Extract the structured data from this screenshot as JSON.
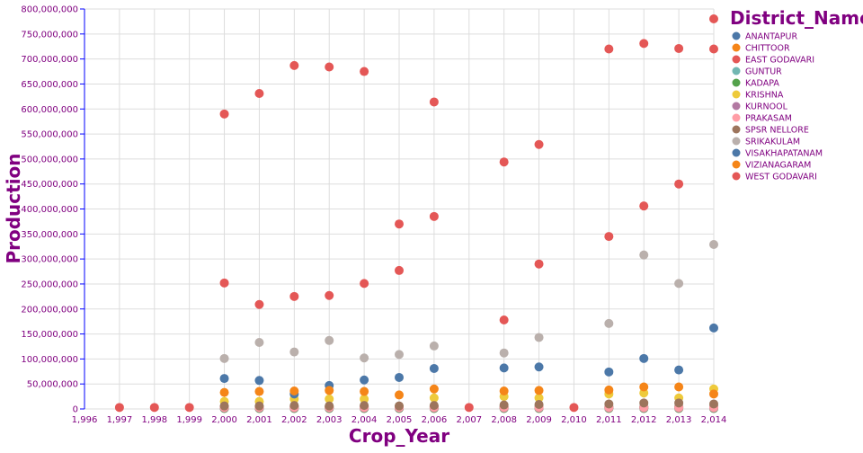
{
  "chart_data": {
    "type": "scatter",
    "xlabel": "Crop_Year",
    "ylabel": "Production",
    "xlim": [
      1996,
      2014
    ],
    "ylim": [
      0,
      800000000
    ],
    "x_ticks": [
      "1,996",
      "1,997",
      "1,998",
      "1,999",
      "2,000",
      "2,001",
      "2,002",
      "2,003",
      "2,004",
      "2,005",
      "2,006",
      "2,007",
      "2,008",
      "2,009",
      "2,010",
      "2,011",
      "2,012",
      "2,013",
      "2,014"
    ],
    "y_ticks": [
      "0",
      "50,000,000",
      "100,000,000",
      "150,000,000",
      "200,000,000",
      "250,000,000",
      "300,000,000",
      "350,000,000",
      "400,000,000",
      "450,000,000",
      "500,000,000",
      "550,000,000",
      "600,000,000",
      "650,000,000",
      "700,000,000",
      "750,000,000",
      "800,000,000"
    ],
    "grid": true,
    "legend": {
      "title": "District_Name",
      "placement": "right"
    },
    "series": [
      {
        "name": "ANANTAPUR",
        "color": "#4c78a8",
        "x": [
          2000,
          2001,
          2002,
          2003,
          2004,
          2005,
          2006,
          2008,
          2009,
          2011,
          2012,
          2013,
          2014
        ],
        "y": [
          2000000,
          2000000,
          3000000,
          2000000,
          2000000,
          2000000,
          2000000,
          3000000,
          3000000,
          3000000,
          3000000,
          3000000,
          3000000
        ]
      },
      {
        "name": "CHITTOOR",
        "color": "#f58518",
        "x": [
          2000,
          2001,
          2002,
          2003,
          2004,
          2005,
          2006,
          2008,
          2009,
          2011,
          2012,
          2013,
          2014
        ],
        "y": [
          4000000,
          4000000,
          4000000,
          4000000,
          4000000,
          4000000,
          4000000,
          4000000,
          4000000,
          4000000,
          4000000,
          4000000,
          4000000
        ]
      },
      {
        "name": "EAST GODAVARI",
        "color": "#e45756",
        "x": [
          2000,
          2001,
          2002,
          2003,
          2004,
          2005,
          2006,
          2008,
          2009,
          2011,
          2012,
          2013
        ],
        "y": [
          252000000,
          209000000,
          225000000,
          227000000,
          251000000,
          277000000,
          385000000,
          178000000,
          290000000,
          345000000,
          406000000,
          450000000
        ]
      },
      {
        "name": "GUNTUR",
        "color": "#72b7b2",
        "x": [
          2000,
          2001,
          2002,
          2003,
          2004,
          2005,
          2006,
          2008,
          2009,
          2011,
          2012,
          2013,
          2014
        ],
        "y": [
          5000000,
          5000000,
          5000000,
          5000000,
          5000000,
          5000000,
          5000000,
          5000000,
          5000000,
          5000000,
          5000000,
          5000000,
          5000000
        ]
      },
      {
        "name": "KADAPA",
        "color": "#54a24b",
        "x": [
          2000,
          2001,
          2002,
          2003,
          2004,
          2005,
          2006,
          2008,
          2009,
          2011,
          2012,
          2013,
          2014
        ],
        "y": [
          1000000,
          1000000,
          1000000,
          1000000,
          1000000,
          1000000,
          1000000,
          1000000,
          1000000,
          1000000,
          1000000,
          1000000,
          1000000
        ]
      },
      {
        "name": "KRISHNA",
        "color": "#eeca3b",
        "x": [
          2000,
          2001,
          2002,
          2003,
          2004,
          2005,
          2006,
          2008,
          2009,
          2011,
          2012,
          2013,
          2014
        ],
        "y": [
          15000000,
          15000000,
          20000000,
          20000000,
          20000000,
          5000000,
          22000000,
          25000000,
          22000000,
          30000000,
          32000000,
          22000000,
          40000000
        ]
      },
      {
        "name": "KURNOOL",
        "color": "#b279a2",
        "x": [
          2000,
          2001,
          2002,
          2003,
          2004,
          2005,
          2006,
          2008,
          2009,
          2011,
          2012,
          2013,
          2014
        ],
        "y": [
          2000000,
          2000000,
          2000000,
          2000000,
          2000000,
          2000000,
          2000000,
          2000000,
          2000000,
          2000000,
          2000000,
          2000000,
          2000000
        ]
      },
      {
        "name": "PRAKASAM",
        "color": "#ff9da6",
        "x": [
          2000,
          2001,
          2002,
          2003,
          2004,
          2005,
          2006,
          2008,
          2009,
          2011,
          2012,
          2013,
          2014
        ],
        "y": [
          3000000,
          3000000,
          3000000,
          3000000,
          3000000,
          3000000,
          3000000,
          3000000,
          3000000,
          3000000,
          3000000,
          3000000,
          3000000
        ]
      },
      {
        "name": "SPSR NELLORE",
        "color": "#9d755d",
        "x": [
          2000,
          2001,
          2002,
          2003,
          2004,
          2005,
          2006,
          2008,
          2009,
          2011,
          2012,
          2013,
          2014
        ],
        "y": [
          6000000,
          6000000,
          7000000,
          6000000,
          7000000,
          6000000,
          7000000,
          8000000,
          9000000,
          10000000,
          12000000,
          12000000,
          10000000
        ]
      },
      {
        "name": "SRIKAKULAM",
        "color": "#bab0ac",
        "x": [
          2000,
          2001,
          2002,
          2003,
          2004,
          2005,
          2006,
          2008,
          2009,
          2011,
          2012,
          2013,
          2014
        ],
        "y": [
          101000000,
          133000000,
          114000000,
          137000000,
          102000000,
          109000000,
          126000000,
          112000000,
          143000000,
          171000000,
          308000000,
          251000000,
          329000000
        ]
      },
      {
        "name": "VISAKHAPATANAM",
        "color": "#4c78a8",
        "x": [
          2000,
          2001,
          2002,
          2003,
          2004,
          2005,
          2006,
          2008,
          2009,
          2011,
          2012,
          2013,
          2014
        ],
        "y": [
          61000000,
          57000000,
          30000000,
          47000000,
          58000000,
          63000000,
          81000000,
          82000000,
          84000000,
          74000000,
          101000000,
          78000000,
          162000000
        ]
      },
      {
        "name": "VIZIANAGARAM",
        "color": "#f58518",
        "x": [
          2000,
          2001,
          2002,
          2003,
          2004,
          2005,
          2006,
          2008,
          2009,
          2011,
          2012,
          2013,
          2014
        ],
        "y": [
          33000000,
          35000000,
          36000000,
          37000000,
          35000000,
          28000000,
          40000000,
          36000000,
          37000000,
          38000000,
          44000000,
          44000000,
          30000000
        ]
      },
      {
        "name": "WEST GODAVARI",
        "color": "#e45756",
        "x": [
          1997,
          1998,
          1999,
          2000,
          2001,
          2002,
          2003,
          2004,
          2005,
          2006,
          2007,
          2008,
          2009,
          2010,
          2011,
          2012,
          2013,
          2014
        ],
        "y": [
          3000000,
          3000000,
          3000000,
          590000000,
          631000000,
          687000000,
          684000000,
          675000000,
          370000000,
          614000000,
          3000000,
          494000000,
          529000000,
          3000000,
          720000000,
          731000000,
          721000000,
          720000000
        ]
      }
    ]
  }
}
